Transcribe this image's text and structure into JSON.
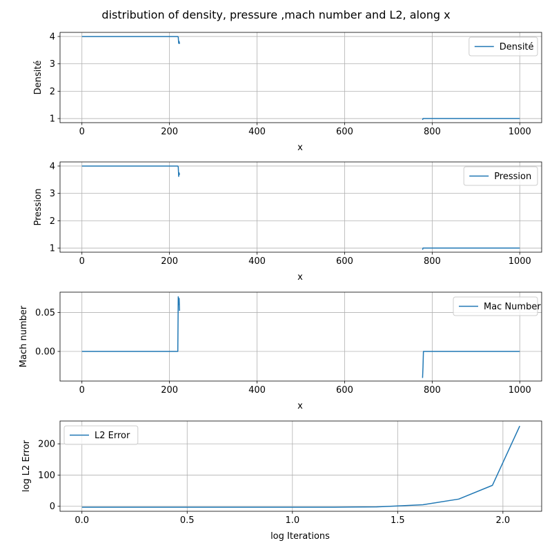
{
  "figure": {
    "suptitle": "distribution of density, pressure ,mach number and L2, along x"
  },
  "colors": {
    "line": "#1f77b4",
    "grid": "#b0b0b0",
    "axis": "#000000"
  },
  "chart_data": [
    {
      "type": "line",
      "xlabel": "x",
      "ylabel": "Densité",
      "xlim": [
        -50,
        1050
      ],
      "ylim": [
        0.85,
        4.15
      ],
      "xticks": [
        0,
        200,
        400,
        600,
        800,
        1000
      ],
      "yticks": [
        1,
        2,
        3,
        4
      ],
      "grid": true,
      "legend": "top-right",
      "series": [
        {
          "name": "Densité",
          "segments": [
            {
              "x": [
                0,
                219,
                220,
                221,
                222,
                223
              ],
              "y": [
                4.0,
                4.0,
                3.98,
                3.75,
                3.82,
                3.73
              ]
            },
            {
              "x": [
                778,
                779,
                780,
                1000
              ],
              "y": [
                0.95,
                1.0,
                1.0,
                1.0
              ]
            }
          ]
        }
      ]
    },
    {
      "type": "line",
      "xlabel": "x",
      "ylabel": "Pression",
      "xlim": [
        -50,
        1050
      ],
      "ylim": [
        0.85,
        4.15
      ],
      "xticks": [
        0,
        200,
        400,
        600,
        800,
        1000
      ],
      "yticks": [
        1,
        2,
        3,
        4
      ],
      "grid": true,
      "legend": "top-right",
      "series": [
        {
          "name": "Pression",
          "segments": [
            {
              "x": [
                0,
                219,
                220,
                221,
                222,
                223
              ],
              "y": [
                4.0,
                4.0,
                3.97,
                3.62,
                3.75,
                3.68
              ]
            },
            {
              "x": [
                778,
                779,
                780,
                1000
              ],
              "y": [
                0.94,
                1.0,
                1.0,
                1.0
              ]
            }
          ]
        }
      ]
    },
    {
      "type": "line",
      "xlabel": "x",
      "ylabel": "Mach number",
      "xlim": [
        -50,
        1050
      ],
      "ylim": [
        -0.038,
        0.076
      ],
      "xticks": [
        0,
        200,
        400,
        600,
        800,
        1000
      ],
      "yticks": [
        0.0,
        0.05
      ],
      "ytick_labels": [
        "0.00",
        "0.05"
      ],
      "grid": true,
      "legend": "top-right",
      "series": [
        {
          "name": "Mac Number",
          "segments": [
            {
              "x": [
                0,
                219,
                220,
                221,
                222,
                223
              ],
              "y": [
                0.0,
                0.0,
                0.07,
                0.06,
                0.068,
                0.052
              ]
            },
            {
              "x": [
                778,
                779,
                780,
                1000
              ],
              "y": [
                -0.034,
                -0.02,
                0.0,
                0.0
              ]
            }
          ]
        }
      ]
    },
    {
      "type": "line",
      "xlabel": "log Iterations",
      "ylabel": "log L2 Error",
      "xlim": [
        -0.104,
        2.184
      ],
      "ylim": [
        -16,
        273
      ],
      "xticks": [
        0.0,
        0.5,
        1.0,
        1.5,
        2.0
      ],
      "xtick_labels": [
        "0.0",
        "0.5",
        "1.0",
        "1.5",
        "2.0"
      ],
      "yticks": [
        0,
        100,
        200
      ],
      "grid": true,
      "legend": "top-left",
      "series": [
        {
          "name": "L2 Error",
          "segments": [
            {
              "x": [
                0.0,
                0.5,
                1.0,
                1.2,
                1.4,
                1.5,
                1.62,
                1.79,
                1.95,
                2.08
              ],
              "y": [
                -3,
                -3,
                -3,
                -3,
                -2,
                1,
                5,
                23,
                67,
                257
              ]
            }
          ]
        }
      ]
    }
  ]
}
